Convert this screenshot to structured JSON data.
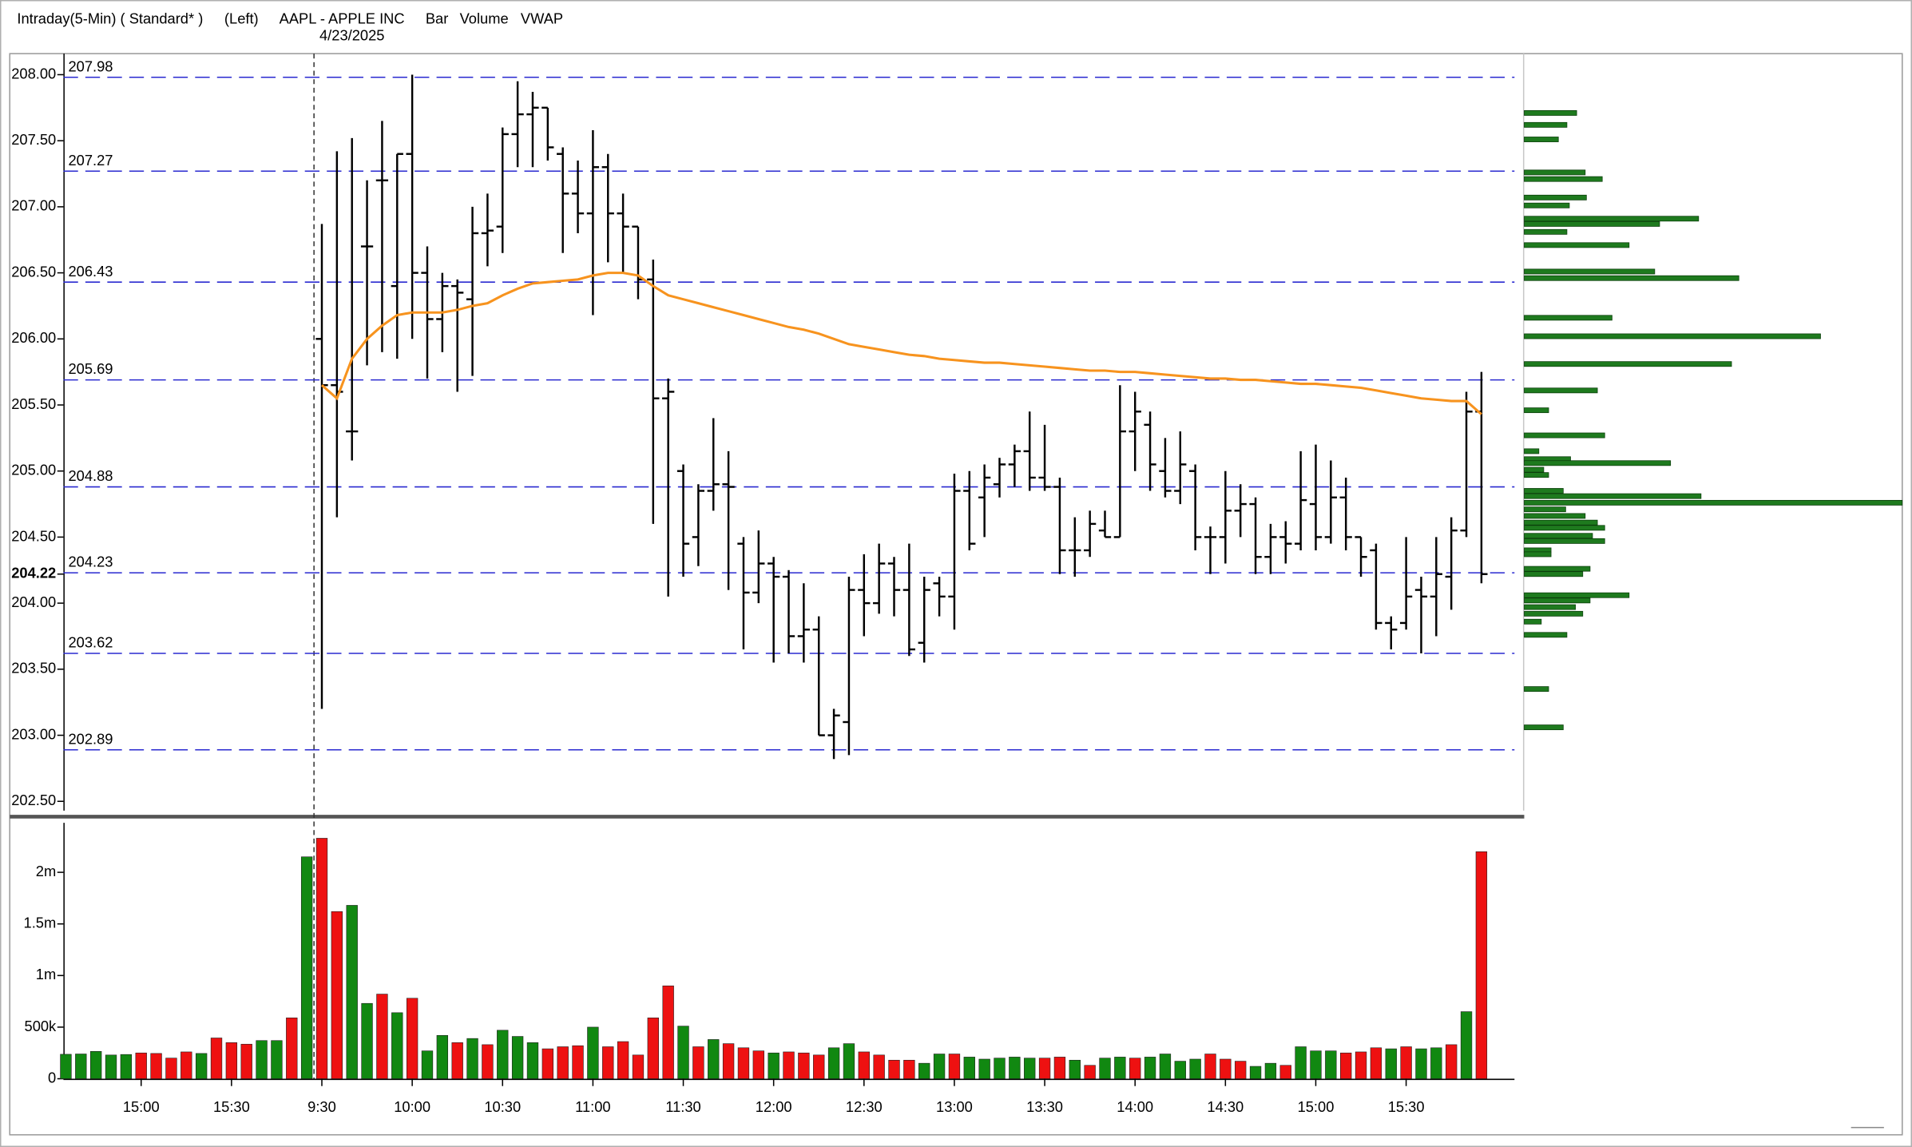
{
  "chart_data": [
    {
      "type": "ohlc",
      "title": "Intraday(5-Min) ( Standard* )",
      "subtitle": "(Left)",
      "symbol": "AAPL - APPLE INC",
      "style": "Bar",
      "date": "4/23/2025",
      "color": "#000000",
      "ylim": [
        202.43,
        208.15
      ],
      "yticks": [
        {
          "value": 202.5,
          "label": "202.50"
        },
        {
          "value": 203,
          "label": "203.00"
        },
        {
          "value": 203.5,
          "label": "203.50"
        },
        {
          "value": 204,
          "label": "204.00"
        },
        {
          "value": 204.5,
          "label": "204.50"
        },
        {
          "value": 205,
          "label": "205.00"
        },
        {
          "value": 205.5,
          "label": "205.50"
        },
        {
          "value": 206,
          "label": "206.00"
        },
        {
          "value": 206.5,
          "label": "206.50"
        },
        {
          "value": 207,
          "label": "207.00"
        },
        {
          "value": 207.5,
          "label": "207.50"
        },
        {
          "value": 208,
          "label": "208.00"
        }
      ],
      "last_price": 204.22,
      "levels": [
        207.98,
        207.27,
        206.43,
        205.69,
        204.88,
        204.23,
        203.62,
        202.89
      ],
      "level_color": "#2a2ad0",
      "open": [
        null,
        null,
        null,
        null,
        null,
        null,
        null,
        null,
        null,
        null,
        null,
        null,
        null,
        null,
        null,
        null,
        null,
        206.0,
        205.65,
        205.3,
        206.7,
        207.2,
        206.4,
        207.4,
        206.5,
        206.15,
        206.4,
        206.3,
        206.8,
        206.85,
        207.55,
        207.7,
        207.75,
        207.4,
        207.1,
        206.95,
        207.3,
        206.95,
        206.85,
        206.45,
        205.55,
        205.0,
        204.5,
        204.85,
        204.9,
        204.45,
        204.08,
        204.3,
        204.2,
        203.75,
        203.8,
        203.0,
        203.1,
        204.1,
        204.0,
        204.3,
        204.1,
        203.7,
        204.15,
        204.05,
        204.85,
        204.8,
        204.9,
        205.05,
        205.15,
        204.95,
        204.88,
        204.4,
        204.4,
        204.55,
        204.5,
        205.3,
        205.35,
        205.0,
        204.85,
        205.0,
        204.5,
        204.5,
        204.7,
        204.75,
        204.35,
        204.5,
        204.45,
        204.75,
        204.5,
        204.8,
        204.5,
        204.4,
        203.85,
        203.85,
        204.1,
        204.05,
        204.2,
        204.55,
        205.45
      ],
      "high": [
        null,
        null,
        null,
        null,
        null,
        null,
        null,
        null,
        null,
        null,
        null,
        null,
        null,
        null,
        null,
        null,
        null,
        206.87,
        207.42,
        207.52,
        207.2,
        207.65,
        207.4,
        208.0,
        206.7,
        206.5,
        206.45,
        207.0,
        207.1,
        207.6,
        207.95,
        207.87,
        207.75,
        207.45,
        207.35,
        207.58,
        207.4,
        207.1,
        206.85,
        206.6,
        205.7,
        205.05,
        204.9,
        205.4,
        205.15,
        204.5,
        204.55,
        204.35,
        204.25,
        204.15,
        203.9,
        203.2,
        204.2,
        204.37,
        204.45,
        204.35,
        204.45,
        204.2,
        204.2,
        204.98,
        205.0,
        205.05,
        205.1,
        205.2,
        205.45,
        205.35,
        204.95,
        204.65,
        204.7,
        204.7,
        205.65,
        205.6,
        205.45,
        205.25,
        205.3,
        205.05,
        204.58,
        205.0,
        204.9,
        204.8,
        204.6,
        204.62,
        205.15,
        205.2,
        205.08,
        204.95,
        204.5,
        204.45,
        203.9,
        204.5,
        204.2,
        204.5,
        204.65,
        205.6,
        205.75
      ],
      "low": [
        null,
        null,
        null,
        null,
        null,
        null,
        null,
        null,
        null,
        null,
        null,
        null,
        null,
        null,
        null,
        null,
        null,
        203.2,
        204.65,
        205.08,
        205.8,
        205.9,
        205.85,
        206.0,
        205.7,
        205.9,
        205.6,
        205.72,
        206.55,
        206.65,
        207.3,
        207.3,
        207.35,
        206.65,
        206.8,
        206.18,
        206.58,
        206.5,
        206.3,
        204.6,
        204.05,
        204.2,
        204.28,
        204.7,
        204.1,
        203.65,
        204.0,
        203.55,
        203.62,
        203.55,
        203.0,
        202.82,
        202.85,
        203.75,
        203.92,
        203.9,
        203.6,
        203.55,
        203.9,
        203.8,
        204.4,
        204.5,
        204.8,
        204.88,
        204.85,
        204.85,
        204.22,
        204.2,
        204.35,
        204.5,
        204.5,
        205.0,
        204.85,
        204.8,
        204.75,
        204.4,
        204.22,
        204.3,
        204.5,
        204.22,
        204.22,
        204.3,
        204.4,
        204.4,
        204.45,
        204.4,
        204.2,
        203.8,
        203.65,
        203.8,
        203.62,
        203.75,
        203.95,
        204.5,
        204.15
      ],
      "close": [
        null,
        null,
        null,
        null,
        null,
        null,
        null,
        null,
        null,
        null,
        null,
        null,
        null,
        null,
        null,
        null,
        null,
        205.65,
        205.6,
        205.3,
        206.7,
        207.2,
        207.4,
        206.5,
        206.15,
        206.4,
        206.35,
        206.8,
        206.82,
        207.55,
        207.7,
        207.75,
        207.45,
        207.1,
        206.95,
        207.3,
        206.95,
        206.85,
        206.45,
        205.55,
        205.6,
        204.45,
        204.85,
        204.9,
        204.88,
        204.08,
        204.3,
        204.2,
        203.75,
        203.8,
        203.0,
        203.15,
        204.1,
        204.0,
        204.3,
        204.1,
        203.65,
        204.1,
        204.05,
        204.85,
        204.45,
        204.95,
        205.05,
        205.15,
        204.95,
        204.88,
        204.4,
        204.4,
        204.6,
        204.5,
        205.3,
        205.45,
        205.05,
        204.85,
        205.05,
        204.5,
        204.5,
        204.7,
        204.75,
        204.35,
        204.5,
        204.45,
        204.78,
        204.5,
        204.8,
        204.5,
        204.35,
        203.85,
        203.8,
        204.05,
        204.05,
        204.22,
        204.55,
        205.45,
        204.22
      ],
      "vwap": {
        "name": "VWAP",
        "color": "#f7931e",
        "values": [
          null,
          null,
          null,
          null,
          null,
          null,
          null,
          null,
          null,
          null,
          null,
          null,
          null,
          null,
          null,
          null,
          null,
          205.65,
          205.55,
          205.85,
          206.0,
          206.1,
          206.18,
          206.2,
          206.2,
          206.2,
          206.22,
          206.25,
          206.27,
          206.33,
          206.38,
          206.42,
          206.43,
          206.44,
          206.45,
          206.48,
          206.5,
          206.5,
          206.48,
          206.4,
          206.33,
          206.3,
          206.27,
          206.24,
          206.21,
          206.18,
          206.15,
          206.12,
          206.09,
          206.07,
          206.04,
          206.0,
          205.96,
          205.94,
          205.92,
          205.9,
          205.88,
          205.87,
          205.85,
          205.84,
          205.83,
          205.82,
          205.82,
          205.81,
          205.8,
          205.79,
          205.78,
          205.77,
          205.76,
          205.76,
          205.75,
          205.75,
          205.74,
          205.73,
          205.72,
          205.71,
          205.7,
          205.7,
          205.69,
          205.69,
          205.68,
          205.67,
          205.66,
          205.66,
          205.65,
          205.64,
          205.63,
          205.61,
          205.59,
          205.57,
          205.55,
          205.54,
          205.53,
          205.53,
          205.43
        ]
      },
      "profile": {
        "color": "#1e7a1e",
        "xlim": [
          0,
          310
        ],
        "prices": [
          207.71,
          207.62,
          207.51,
          207.26,
          207.21,
          207.07,
          207.01,
          206.91,
          206.87,
          206.81,
          206.71,
          206.51,
          206.46,
          206.16,
          206.02,
          205.81,
          205.61,
          205.46,
          205.27,
          205.15,
          205.09,
          205.06,
          205.01,
          204.97,
          204.85,
          204.81,
          204.76,
          204.71,
          204.66,
          204.61,
          204.57,
          204.51,
          204.47,
          204.4,
          204.37,
          204.26,
          204.22,
          204.06,
          204.02,
          203.97,
          203.92,
          203.86,
          203.76,
          203.35,
          203.06
        ],
        "values": [
          43,
          35,
          28,
          50,
          64,
          51,
          37,
          143,
          111,
          35,
          86,
          107,
          176,
          72,
          243,
          170,
          60,
          20,
          66,
          12,
          38,
          120,
          16,
          20,
          32,
          145,
          310,
          34,
          50,
          60,
          66,
          56,
          66,
          22,
          22,
          54,
          48,
          86,
          54,
          42,
          48,
          14,
          35,
          20,
          32
        ]
      }
    },
    {
      "type": "bar",
      "name": "Volume",
      "color": "#118811",
      "categories": [
        null,
        null,
        null,
        null,
        null,
        "15:00",
        null,
        null,
        null,
        null,
        null,
        "15:30",
        null,
        null,
        null,
        null,
        null,
        "9:30",
        null,
        null,
        null,
        null,
        null,
        "10:00",
        null,
        null,
        null,
        null,
        null,
        "10:30",
        null,
        null,
        null,
        null,
        null,
        "11:00",
        null,
        null,
        null,
        null,
        null,
        "11:30",
        null,
        null,
        null,
        null,
        null,
        "12:00",
        null,
        null,
        null,
        null,
        null,
        "12:30",
        null,
        null,
        null,
        null,
        null,
        "13:00",
        null,
        null,
        null,
        null,
        null,
        "13:30",
        null,
        null,
        null,
        null,
        null,
        "14:00",
        null,
        null,
        null,
        null,
        null,
        "14:30",
        null,
        null,
        null,
        null,
        null,
        "15:00",
        null,
        null,
        null,
        null,
        null,
        "15:30",
        null,
        null,
        null,
        null,
        null
      ],
      "values": [
        237000,
        240000,
        265000,
        230000,
        235000,
        250000,
        245000,
        200000,
        260000,
        245000,
        395000,
        350000,
        335000,
        370000,
        370000,
        590000,
        2150000,
        2330000,
        1620000,
        1680000,
        730000,
        820000,
        640000,
        780000,
        270000,
        420000,
        350000,
        390000,
        330000,
        470000,
        410000,
        350000,
        290000,
        310000,
        320000,
        500000,
        310000,
        360000,
        230000,
        590000,
        900000,
        510000,
        310000,
        380000,
        340000,
        300000,
        270000,
        250000,
        260000,
        250000,
        230000,
        300000,
        340000,
        260000,
        230000,
        180000,
        180000,
        150000,
        240000,
        240000,
        210000,
        190000,
        200000,
        210000,
        200000,
        200000,
        210000,
        180000,
        130000,
        200000,
        210000,
        200000,
        210000,
        240000,
        170000,
        190000,
        240000,
        190000,
        170000,
        120000,
        150000,
        130000,
        310000,
        270000,
        270000,
        250000,
        260000,
        300000,
        290000,
        310000,
        290000,
        300000,
        330000,
        650000,
        2200000
      ],
      "colors": [
        "#118811",
        "#118811",
        "#118811",
        "#118811",
        "#118811",
        "#ee1111",
        "#ee1111",
        "#ee1111",
        "#ee1111",
        "#118811",
        "#ee1111",
        "#ee1111",
        "#ee1111",
        "#118811",
        "#118811",
        "#ee1111",
        "#118811",
        "#ee1111",
        "#ee1111",
        "#118811",
        "#118811",
        "#ee1111",
        "#118811",
        "#ee1111",
        "#118811",
        "#118811",
        "#ee1111",
        "#118811",
        "#ee1111",
        "#118811",
        "#118811",
        "#118811",
        "#ee1111",
        "#ee1111",
        "#ee1111",
        "#118811",
        "#ee1111",
        "#ee1111",
        "#ee1111",
        "#ee1111",
        "#ee1111",
        "#118811",
        "#ee1111",
        "#118811",
        "#ee1111",
        "#ee1111",
        "#ee1111",
        "#118811",
        "#ee1111",
        "#ee1111",
        "#ee1111",
        "#118811",
        "#118811",
        "#ee1111",
        "#ee1111",
        "#ee1111",
        "#ee1111",
        "#118811",
        "#118811",
        "#ee1111",
        "#118811",
        "#118811",
        "#118811",
        "#118811",
        "#118811",
        "#ee1111",
        "#ee1111",
        "#118811",
        "#ee1111",
        "#118811",
        "#118811",
        "#ee1111",
        "#118811",
        "#118811",
        "#118811",
        "#118811",
        "#ee1111",
        "#ee1111",
        "#ee1111",
        "#118811",
        "#118811",
        "#ee1111",
        "#118811",
        "#118811",
        "#118811",
        "#ee1111",
        "#ee1111",
        "#ee1111",
        "#118811",
        "#ee1111",
        "#118811",
        "#118811",
        "#ee1111",
        "#118811",
        "#ee1111"
      ],
      "ylim": [
        0,
        2480000
      ],
      "yticks": [
        0,
        {
          "value": 500000,
          "label": "500k"
        },
        {
          "value": 1000000,
          "label": "1m"
        },
        {
          "value": 1500000,
          "label": "1.5m"
        },
        {
          "value": 2000000,
          "label": "2m"
        }
      ]
    }
  ]
}
